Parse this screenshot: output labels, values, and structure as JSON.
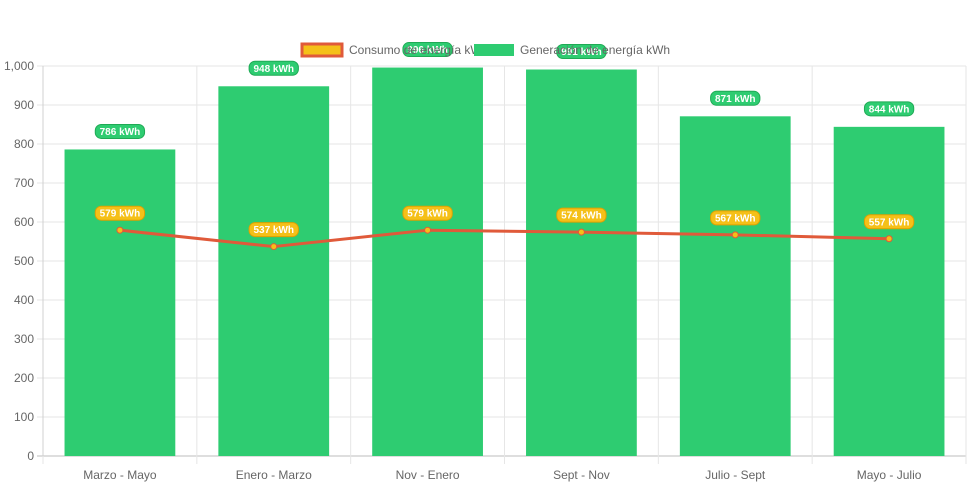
{
  "chart_data": {
    "type": "bar",
    "title": "",
    "xlabel": "",
    "ylabel": "",
    "ylim": [
      0,
      1000
    ],
    "yticks": [
      0,
      100,
      200,
      300,
      400,
      500,
      600,
      700,
      800,
      900,
      1000
    ],
    "ytick_labels": [
      "0",
      "100",
      "200",
      "300",
      "400",
      "500",
      "600",
      "700",
      "800",
      "900",
      "1,000"
    ],
    "grid": true,
    "legend_position": "top-center",
    "categories": [
      "Marzo - Mayo",
      "Enero - Marzo",
      "Nov - Enero",
      "Sept - Nov",
      "Julio - Sept",
      "Mayo - Julio"
    ],
    "series": [
      {
        "name": "Consumo de energía kWh",
        "type": "line",
        "color": "#e05a3a",
        "fill_color": "#f5c018",
        "values": [
          579,
          537,
          579,
          574,
          567,
          557
        ],
        "data_labels": [
          "579 kWh",
          "537 kWh",
          "579 kWh",
          "574 kWh",
          "567 kWh",
          "557 kWh"
        ]
      },
      {
        "name": "Generación de energía kWh",
        "type": "bar",
        "color": "#2ecc71",
        "values": [
          786,
          948,
          996,
          991,
          871,
          844
        ],
        "data_labels": [
          "786 kWh",
          "948 kWh",
          "996 kWh",
          "991 kWh",
          "871 kWh",
          "844 kWh"
        ]
      }
    ]
  }
}
